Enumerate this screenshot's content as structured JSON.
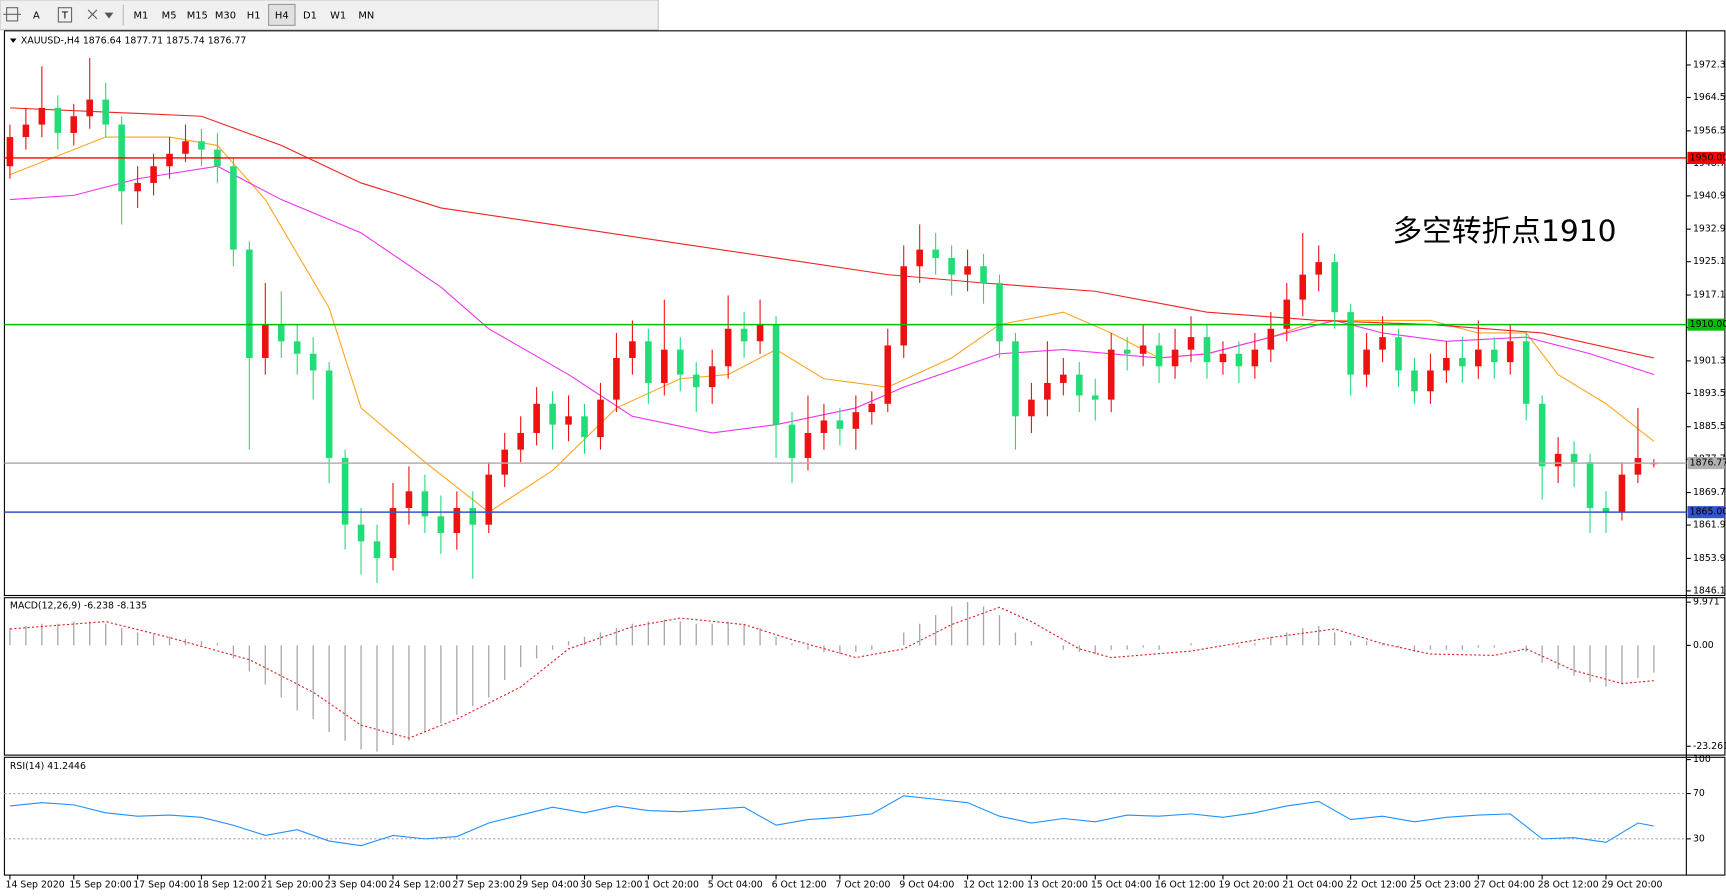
{
  "toolbar": {
    "tools": [
      "A",
      "T"
    ],
    "timeframes": [
      "M1",
      "M5",
      "M15",
      "M30",
      "H1",
      "H4",
      "D1",
      "W1",
      "MN"
    ],
    "active": "H4"
  },
  "chart_data": [
    {
      "type": "candlestick",
      "symbol": "XAUUSD-,H4",
      "annotation": "多空转折点1910",
      "annotation_color": "#ff1a1a",
      "up_color": "#ee1111",
      "down_color": "#22dd77",
      "open": [
        1948,
        1955,
        1958,
        1962,
        1956,
        1960,
        1964,
        1958,
        1942,
        1944,
        1948,
        1951,
        1954,
        1952,
        1948,
        1928,
        1902,
        1910,
        1906,
        1903,
        1899,
        1878,
        1862,
        1858,
        1854,
        1866,
        1870,
        1864,
        1860,
        1866,
        1862,
        1874,
        1880,
        1884,
        1891,
        1886,
        1888,
        1883,
        1892,
        1902,
        1906,
        1896,
        1904,
        1898,
        1895,
        1900,
        1909,
        1906,
        1910,
        1886,
        1878,
        1884,
        1887,
        1885,
        1889,
        1891,
        1905,
        1924,
        1928,
        1926,
        1922,
        1924,
        1920,
        1906,
        1888,
        1892,
        1896,
        1898,
        1893,
        1892,
        1904,
        1903,
        1905,
        1900,
        1904,
        1907,
        1901,
        1903,
        1900,
        1904,
        1909,
        1916,
        1922,
        1925,
        1913,
        1898,
        1904,
        1907,
        1899,
        1894,
        1899,
        1902,
        1900,
        1904,
        1901,
        1906,
        1891,
        1876,
        1879,
        1877,
        1866,
        1865,
        1874,
        1876.64
      ],
      "high": [
        1958,
        1962,
        1972,
        1965,
        1963,
        1974,
        1968,
        1960,
        1948,
        1951,
        1955,
        1958,
        1957,
        1956,
        1950,
        1930,
        1920,
        1918,
        1910,
        1907,
        1901,
        1880,
        1866,
        1862,
        1872,
        1876,
        1874,
        1869,
        1870,
        1870,
        1877,
        1884,
        1888,
        1895,
        1894,
        1893,
        1891,
        1896,
        1908,
        1911,
        1909,
        1916,
        1907,
        1901,
        1904,
        1917,
        1913,
        1916,
        1912,
        1889,
        1893,
        1891,
        1890,
        1893,
        1894,
        1909,
        1929,
        1934,
        1932,
        1929,
        1928,
        1927,
        1922,
        1908,
        1896,
        1906,
        1902,
        1901,
        1897,
        1908,
        1907,
        1910,
        1908,
        1909,
        1912,
        1910,
        1906,
        1906,
        1908,
        1913,
        1920,
        1932,
        1929,
        1927,
        1915,
        1908,
        1912,
        1909,
        1902,
        1903,
        1906,
        1907,
        1911,
        1907,
        1910,
        1908,
        1893,
        1883,
        1882,
        1879,
        1870,
        1877,
        1890,
        1877.71
      ],
      "low": [
        1945,
        1952,
        1955,
        1952,
        1953,
        1957,
        1955,
        1934,
        1938,
        1941,
        1945,
        1949,
        1948,
        1944,
        1924,
        1880,
        1898,
        1902,
        1898,
        1892,
        1872,
        1856,
        1850,
        1848,
        1851,
        1862,
        1860,
        1855,
        1856,
        1849,
        1860,
        1871,
        1877,
        1881,
        1880,
        1882,
        1879,
        1880,
        1889,
        1898,
        1891,
        1893,
        1894,
        1889,
        1891,
        1897,
        1902,
        1903,
        1878,
        1872,
        1875,
        1880,
        1881,
        1880,
        1886,
        1889,
        1902,
        1920,
        1922,
        1917,
        1918,
        1915,
        1902,
        1880,
        1884,
        1888,
        1893,
        1889,
        1887,
        1889,
        1899,
        1900,
        1896,
        1897,
        1901,
        1897,
        1898,
        1896,
        1897,
        1901,
        1906,
        1912,
        1918,
        1909,
        1893,
        1895,
        1901,
        1895,
        1891,
        1891,
        1896,
        1896,
        1897,
        1897,
        1898,
        1887,
        1868,
        1872,
        1871,
        1860,
        1860,
        1863,
        1872,
        1875.74
      ],
      "close": [
        1955,
        1958,
        1962,
        1956,
        1960,
        1964,
        1958,
        1942,
        1944,
        1948,
        1951,
        1954,
        1952,
        1948,
        1928,
        1902,
        1910,
        1906,
        1903,
        1899,
        1878,
        1862,
        1858,
        1854,
        1866,
        1870,
        1864,
        1860,
        1866,
        1862,
        1874,
        1880,
        1884,
        1891,
        1886,
        1888,
        1883,
        1892,
        1902,
        1906,
        1896,
        1904,
        1898,
        1895,
        1900,
        1909,
        1906,
        1910,
        1886,
        1878,
        1884,
        1887,
        1885,
        1889,
        1891,
        1905,
        1924,
        1928,
        1926,
        1922,
        1924,
        1920,
        1906,
        1888,
        1892,
        1896,
        1898,
        1893,
        1892,
        1904,
        1903,
        1905,
        1900,
        1904,
        1907,
        1901,
        1903,
        1900,
        1904,
        1909,
        1916,
        1922,
        1925,
        1913,
        1898,
        1904,
        1907,
        1899,
        1894,
        1899,
        1902,
        1900,
        1904,
        1901,
        1906,
        1891,
        1876,
        1879,
        1877,
        1866,
        1865,
        1874,
        1878,
        1876.77
      ],
      "ma": [
        {
          "color": "#ffa520",
          "x": [
            0,
            6,
            10,
            13,
            16,
            20,
            22,
            26,
            30,
            34,
            38,
            42,
            45,
            48,
            51,
            55,
            59,
            62,
            66,
            69,
            72,
            75,
            79,
            82,
            86,
            89,
            92,
            95,
            97,
            100,
            103
          ],
          "values": [
            1946,
            1955,
            1955,
            1953,
            1940,
            1914,
            1890,
            1877,
            1865,
            1875,
            1890,
            1897,
            1898,
            1904,
            1897,
            1895,
            1902,
            1910,
            1913,
            1908,
            1902,
            1903,
            1907,
            1911,
            1911,
            1911,
            1908,
            1908,
            1898,
            1891,
            1882
          ]
        },
        {
          "color": "#ee33ee",
          "x": [
            0,
            4,
            8,
            13,
            17,
            22,
            27,
            30,
            35,
            39,
            44,
            48,
            53,
            56,
            62,
            66,
            72,
            75,
            79,
            83,
            86,
            90,
            95,
            99,
            103
          ],
          "values": [
            1940,
            1941,
            1945,
            1948,
            1940,
            1932,
            1919,
            1909,
            1898,
            1888,
            1884,
            1886,
            1890,
            1895,
            1903,
            1904,
            1902,
            1903,
            1907,
            1911,
            1908,
            1906,
            1907,
            1903,
            1898
          ]
        },
        {
          "color": "#ee2222",
          "x": [
            0,
            6,
            12,
            17,
            22,
            27,
            34,
            41,
            48,
            55,
            61,
            68,
            75,
            82,
            89,
            96,
            103
          ],
          "values": [
            1962,
            1961,
            1960,
            1953,
            1944,
            1938,
            1934,
            1930,
            1926,
            1922,
            1920,
            1918,
            1913,
            1911,
            1910,
            1908,
            1902
          ]
        }
      ],
      "hlines": [
        {
          "value": 1950,
          "label": "1950.00",
          "color": "#ff0000",
          "text_color": "#ffffff"
        },
        {
          "value": 1910,
          "label": "1910.00",
          "color": "#00c000",
          "text_color": "#ffffff"
        },
        {
          "value": 1865,
          "label": "1865.00",
          "color": "#3355cc",
          "text_color": "#ffffff"
        },
        {
          "value": 1876.77,
          "label": "1876.77",
          "color": "#b0b0b0",
          "text_color": "#000000"
        }
      ],
      "ylim": [
        1845,
        1980.5
      ],
      "yticks": [
        {
          "value": 1972.3,
          "label": "1972.30"
        },
        {
          "value": 1964.5,
          "label": "1964.50"
        },
        {
          "value": 1956.5,
          "label": "1956.50"
        },
        {
          "value": 1948.7,
          "label": "1948.70"
        },
        {
          "value": 1940.9,
          "label": "1940.90"
        },
        {
          "value": 1932.9,
          "label": "1932.90"
        },
        {
          "value": 1925.1,
          "label": "1925.10"
        },
        {
          "value": 1917.1,
          "label": "1917.10"
        },
        {
          "value": 1909.3,
          "label": "1909.30"
        },
        {
          "value": 1901.3,
          "label": "1901.30"
        },
        {
          "value": 1893.5,
          "label": "1893.50"
        },
        {
          "value": 1885.5,
          "label": "1885.50"
        },
        {
          "value": 1877.7,
          "label": "1877.70"
        },
        {
          "value": 1869.7,
          "label": "1869.70"
        },
        {
          "value": 1861.9,
          "label": "1861.90"
        },
        {
          "value": 1853.9,
          "label": "1853.90"
        },
        {
          "value": 1846.1,
          "label": "1846.10"
        }
      ],
      "xlabels": [
        "14 Sep 2020",
        "15 Sep 20:00",
        "17 Sep 04:00",
        "18 Sep 12:00",
        "21 Sep 20:00",
        "23 Sep 04:00",
        "24 Sep 12:00",
        "27 Sep 23:00",
        "29 Sep 04:00",
        "30 Sep 12:00",
        "1 Oct 20:00",
        "5 Oct 04:00",
        "6 Oct 12:00",
        "7 Oct 20:00",
        "9 Oct 04:00",
        "12 Oct 12:00",
        "13 Oct 20:00",
        "15 Oct 04:00",
        "16 Oct 12:00",
        "19 Oct 20:00",
        "21 Oct 04:00",
        "22 Oct 12:00",
        "25 Oct 23:00",
        "27 Oct 04:00",
        "28 Oct 12:00",
        "29 Oct 20:00"
      ]
    },
    {
      "type": "macd",
      "name": "MACD(12,26,9)",
      "histogram": {
        "color": "#a8a8a8",
        "values": [
          4,
          4.5,
          5,
          5,
          5.5,
          5.5,
          5,
          4,
          3,
          2.5,
          2,
          1.5,
          1,
          0.5,
          -3,
          -6,
          -9,
          -12,
          -15,
          -17,
          -20,
          -22,
          -24,
          -24.5,
          -23,
          -22,
          -20,
          -18,
          -16,
          -14,
          -12,
          -8,
          -5,
          -3,
          -1,
          1,
          2,
          3,
          4,
          5,
          5.5,
          6,
          5.5,
          5,
          5,
          5.5,
          5,
          4,
          2,
          0.5,
          -1,
          -1.5,
          -2,
          -1.5,
          -1,
          0,
          3,
          5,
          7,
          9,
          10,
          9,
          7,
          3,
          1,
          0,
          -1,
          -1.5,
          -2,
          -1,
          -1,
          -0.5,
          -1,
          0,
          0.5,
          0,
          0,
          -0.5,
          0.5,
          2,
          3,
          4,
          4.5,
          3,
          1,
          1,
          0.5,
          -0.5,
          -1.5,
          -1,
          -1,
          -1,
          -0.5,
          -0.5,
          0,
          -1.5,
          -4,
          -5.5,
          -7,
          -8.5,
          -9.5,
          -9,
          -7.5,
          -6.238
        ]
      },
      "signal": {
        "color": "#dd2222",
        "x": [
          0,
          6,
          10,
          15,
          19,
          22,
          25,
          28,
          32,
          35,
          39,
          42,
          46,
          49,
          53,
          56,
          59,
          62,
          64,
          67,
          69,
          74,
          79,
          83,
          86,
          89,
          93,
          95,
          98,
          101,
          103
        ],
        "values": [
          3.8,
          5.5,
          1.8,
          -3.3,
          -10.8,
          -18.4,
          -21.4,
          -17,
          -9.6,
          -0.8,
          4.3,
          6.3,
          4.8,
          1.3,
          -2.8,
          -0.8,
          4.8,
          8.8,
          5.5,
          -0.8,
          -2.8,
          -1.3,
          1.8,
          3.8,
          0.4,
          -2,
          -2.3,
          -0.8,
          -5.8,
          -8.8,
          -8.135
        ]
      },
      "ylim": [
        -25.3,
        11
      ],
      "yticks": [
        9.971,
        {
          "value": 0,
          "label": "0.00"
        },
        -23.261
      ]
    },
    {
      "type": "line",
      "name": "RSI(14)",
      "color": "#1e90ff",
      "x": [
        0,
        2,
        4,
        6,
        8,
        10,
        12,
        14,
        16,
        18,
        20,
        22,
        24,
        26,
        28,
        30,
        32,
        34,
        36,
        38,
        40,
        42,
        44,
        46,
        48,
        50,
        52,
        54,
        56,
        58,
        60,
        62,
        64,
        66,
        68,
        70,
        72,
        74,
        76,
        78,
        80,
        82,
        84,
        86,
        88,
        90,
        92,
        94,
        96,
        98,
        100,
        102,
        103
      ],
      "values": [
        59,
        62,
        60,
        53,
        50,
        51,
        49,
        42,
        33,
        38,
        28,
        24,
        33,
        30,
        32,
        44,
        51,
        58,
        53,
        59,
        55,
        54,
        56,
        58,
        42,
        47,
        49,
        52,
        68,
        65,
        62,
        50,
        44,
        48,
        45,
        51,
        50,
        52,
        49,
        53,
        59,
        63,
        47,
        50,
        45,
        49,
        51,
        52,
        30,
        31,
        27,
        44,
        41.2446
      ],
      "levels": [
        70,
        30
      ],
      "ylim": [
        -2,
        102
      ],
      "yticks": [
        100,
        70,
        30
      ]
    }
  ]
}
